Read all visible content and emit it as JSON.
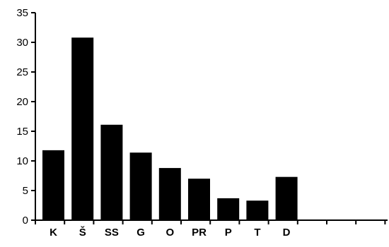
{
  "chart_data": {
    "type": "bar",
    "title": "",
    "xlabel": "",
    "ylabel": "",
    "categories": [
      "K",
      "Š",
      "SS",
      "G",
      "O",
      "PR",
      "P",
      "T",
      "D"
    ],
    "values": [
      11.8,
      30.8,
      16.1,
      11.4,
      8.8,
      7.0,
      3.7,
      3.3,
      7.3
    ],
    "empty_slots_after": 3,
    "ylim": [
      0,
      35
    ],
    "yticks": [
      0,
      5,
      10,
      15,
      20,
      25,
      30,
      35
    ],
    "grid": false,
    "bar_color": "#000000",
    "axis_color": "#000000"
  }
}
